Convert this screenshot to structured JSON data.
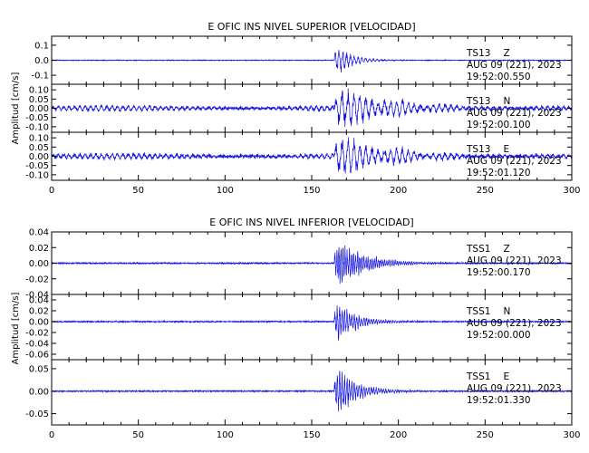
{
  "chart_data": [
    {
      "type": "line",
      "title": "E OFIC INS NIVEL SUPERIOR [VELOCIDAD]",
      "ylabel": "Amplitud [cm/s]",
      "xlim": [
        0,
        300
      ],
      "x_ticks": [
        "0",
        "50",
        "100",
        "150",
        "200",
        "250",
        "300"
      ],
      "line_color": "#1010e0",
      "traces": [
        {
          "station": "TS13",
          "component": "Z",
          "date": "AUG 09 (221), 2023",
          "time": "19:52:00.550",
          "ylim": [
            -0.16,
            0.16
          ],
          "y_ticks": [
            "0.1",
            "0.0",
            "-0.1"
          ],
          "noise_amp": 0.002,
          "onset": 163,
          "peak_amp": 0.12,
          "decay": 9,
          "period": 2.2,
          "ringing": 0.0
        },
        {
          "station": "TS13",
          "component": "N",
          "date": "AUG 09 (221), 2023",
          "time": "19:52:00.100",
          "ylim": [
            -0.13,
            0.13
          ],
          "y_ticks": [
            "0.10",
            "0.05",
            "0.00",
            "-0.05",
            "-0.10"
          ],
          "noise_amp": 0.006,
          "onset": 163,
          "peak_amp": 0.11,
          "decay": 35,
          "period": 3.5,
          "ringing": 0.012
        },
        {
          "station": "TS13",
          "component": "E",
          "date": "AUG 09 (221), 2023",
          "time": "19:52:01.120",
          "ylim": [
            -0.13,
            0.13
          ],
          "y_ticks": [
            "0.10",
            "0.05",
            "0.00",
            "-0.05",
            "-0.10"
          ],
          "noise_amp": 0.007,
          "onset": 163,
          "peak_amp": 0.12,
          "decay": 30,
          "period": 3.5,
          "ringing": 0.012
        }
      ]
    },
    {
      "type": "line",
      "title": "E OFIC INS NIVEL INFERIOR [VELOCIDAD]",
      "ylabel": "Amplitud [cm/s]",
      "xlim": [
        0,
        300
      ],
      "x_ticks": [
        "0",
        "50",
        "100",
        "150",
        "200",
        "250",
        "300"
      ],
      "line_color": "#1010e0",
      "traces": [
        {
          "station": "TSS1",
          "component": "Z",
          "date": "AUG 09 (221), 2023",
          "time": "19:52:00.170",
          "ylim": [
            -0.04,
            0.04
          ],
          "y_ticks": [
            "0.04",
            "0.02",
            "0.00",
            "-0.02",
            "-0.04"
          ],
          "noise_amp": 0.0007,
          "onset": 163,
          "peak_amp": 0.033,
          "decay": 16,
          "period": 1.2,
          "ringing": 0.0
        },
        {
          "station": "TSS1",
          "component": "N",
          "date": "AUG 09 (221), 2023",
          "time": "19:52:00.000",
          "ylim": [
            -0.07,
            0.05
          ],
          "y_ticks": [
            "0.04",
            "0.02",
            "0.00",
            "-0.02",
            "-0.04",
            "-0.06"
          ],
          "noise_amp": 0.001,
          "onset": 163,
          "peak_amp": 0.045,
          "decay": 11,
          "period": 1.4,
          "ringing": 0.0
        },
        {
          "station": "TSS1",
          "component": "E",
          "date": "AUG 09 (221), 2023",
          "time": "19:52:01.330",
          "ylim": [
            -0.075,
            0.07
          ],
          "y_ticks": [
            "0.05",
            "0.00",
            "-0.05"
          ],
          "noise_amp": 0.0012,
          "onset": 163,
          "peak_amp": 0.06,
          "decay": 12,
          "period": 1.4,
          "ringing": 0.0
        }
      ]
    }
  ]
}
